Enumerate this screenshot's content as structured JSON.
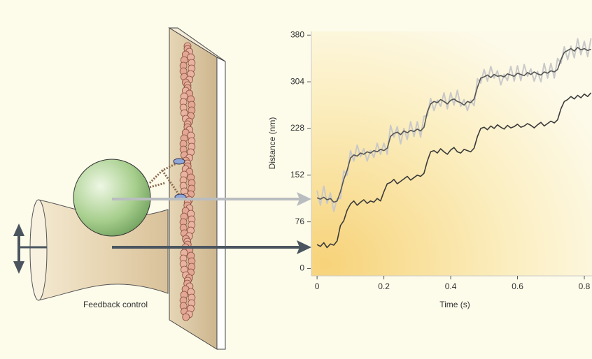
{
  "chart_data": {
    "type": "line",
    "y_label": "Distance (nm)",
    "x_label": "Time (s)",
    "xlim": [
      -0.017,
      0.823
    ],
    "ylim": [
      -12,
      386
    ],
    "xticks": [
      0,
      0.2,
      0.4,
      0.6,
      0.8
    ],
    "yticks": [
      0,
      76,
      152,
      228,
      304,
      380
    ],
    "x": [
      0,
      0.01,
      0.02,
      0.03,
      0.04,
      0.05,
      0.06,
      0.07,
      0.08,
      0.09,
      0.1,
      0.11,
      0.12,
      0.13,
      0.14,
      0.15,
      0.16,
      0.17,
      0.18,
      0.19,
      0.2,
      0.21,
      0.22,
      0.23,
      0.24,
      0.25,
      0.26,
      0.27,
      0.28,
      0.29,
      0.3,
      0.31,
      0.32,
      0.33,
      0.34,
      0.35,
      0.36,
      0.37,
      0.38,
      0.39,
      0.4,
      0.41,
      0.42,
      0.43,
      0.44,
      0.45,
      0.46,
      0.47,
      0.48,
      0.49,
      0.5,
      0.51,
      0.52,
      0.53,
      0.54,
      0.55,
      0.56,
      0.57,
      0.58,
      0.59,
      0.6,
      0.61,
      0.62,
      0.63,
      0.64,
      0.65,
      0.66,
      0.67,
      0.68,
      0.69,
      0.7,
      0.71,
      0.72,
      0.73,
      0.74,
      0.75,
      0.76,
      0.77,
      0.78,
      0.79,
      0.8,
      0.81,
      0.82
    ],
    "series": [
      {
        "color": "#c9c9c9",
        "width": 2,
        "values": [
          127,
          103,
          134,
          106,
          123,
          93,
          114,
          114,
          159,
          152,
          192,
          175,
          201,
          182,
          195,
          175,
          192,
          181,
          204,
          186,
          204,
          186,
          233,
          214,
          231,
          203,
          228,
          210,
          239,
          215,
          239,
          214,
          248,
          249,
          277,
          257,
          274,
          264,
          286,
          260,
          286,
          266,
          290,
          264,
          275,
          257,
          274,
          265,
          309,
          302,
          324,
          305,
          329,
          310,
          322,
          299,
          316,
          306,
          329,
          305,
          330,
          306,
          332,
          313,
          325,
          305,
          321,
          304,
          334,
          310,
          334,
          310,
          342,
          334,
          361,
          340,
          362,
          343,
          374,
          348,
          370,
          345,
          375
        ]
      },
      {
        "color": "#555555",
        "width": 1.6,
        "values": [
          115,
          113,
          116,
          112,
          114,
          108,
          110,
          125,
          145,
          160,
          180,
          185,
          183,
          188,
          186,
          190,
          188,
          192,
          190,
          194,
          192,
          196,
          215,
          220,
          222,
          218,
          224,
          221,
          225,
          223,
          227,
          224,
          230,
          255,
          268,
          272,
          270,
          275,
          272,
          268,
          274,
          276,
          272,
          270,
          266,
          272,
          270,
          276,
          295,
          310,
          312,
          315,
          311,
          316,
          313,
          314,
          312,
          317,
          315,
          313,
          318,
          316,
          314,
          319,
          316,
          320,
          317,
          315,
          320,
          318,
          322,
          320,
          324,
          340,
          352,
          355,
          358,
          354,
          360,
          356,
          358,
          355,
          357
        ]
      },
      {
        "color": "#3a3a3a",
        "width": 1.6,
        "values": [
          39,
          36,
          42,
          34,
          40,
          38,
          45,
          70,
          78,
          95,
          105,
          110,
          103,
          108,
          112,
          106,
          110,
          108,
          114,
          110,
          125,
          138,
          140,
          145,
          138,
          142,
          146,
          150,
          144,
          148,
          152,
          150,
          155,
          175,
          190,
          192,
          188,
          195,
          190,
          186,
          193,
          197,
          190,
          188,
          194,
          192,
          190,
          196,
          215,
          228,
          230,
          226,
          232,
          228,
          234,
          230,
          227,
          233,
          229,
          231,
          235,
          230,
          232,
          236,
          233,
          229,
          234,
          238,
          232,
          236,
          240,
          237,
          242,
          260,
          272,
          275,
          280,
          276,
          282,
          278,
          284,
          280,
          286
        ]
      }
    ]
  },
  "diagram": {
    "label": "Feedback control"
  }
}
